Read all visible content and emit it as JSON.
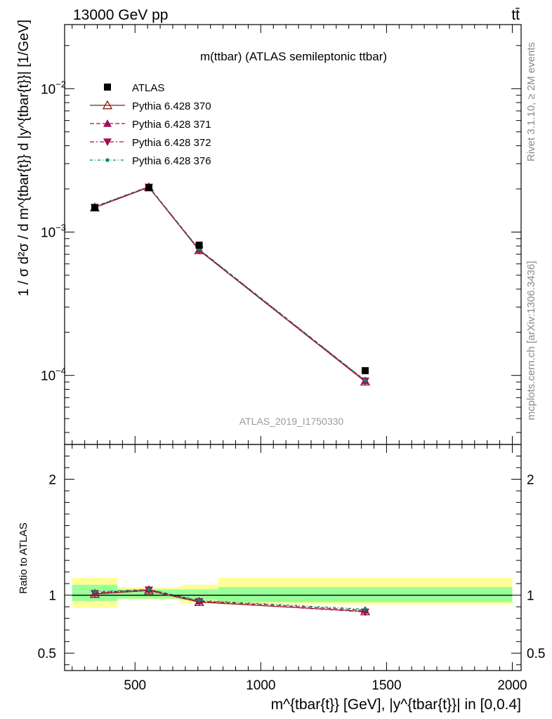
{
  "header": {
    "left": "13000 GeV pp",
    "right": "tt̄"
  },
  "side_text": {
    "rivet": "Rivet 3.1.10, ≥ 2M events",
    "mcplots": "mcplots.cern.ch [arXiv:1306.3436]"
  },
  "chart_data": {
    "type": "line",
    "title": "m(ttbar) (ATLAS semileptonic ttbar)",
    "analysis_tag": "ATLAS_2019_I1750330",
    "ylabel_main": "1 / σ d²σ / d m^{tbar{t}} d |y^{tbar{t}}| [1/GeV]",
    "ylabel_ratio": "Ratio to ATLAS",
    "xlabel": "m^{tbar{t}} [GeV], |y^{tbar{t}}| in [0,0.4]",
    "x_range": [
      220,
      2035
    ],
    "y_range_main": [
      3.3e-05,
      0.028
    ],
    "y_scale_main": "log",
    "y_range_ratio": [
      0.35,
      2.3
    ],
    "x_ticks": [
      "500",
      "1000",
      "1500",
      "2000"
    ],
    "y_ticks_main": [
      "10^{-4}",
      "10^{-3}",
      "10^{-2}"
    ],
    "y_ticks_ratio": [
      "0.5",
      "1",
      "2"
    ],
    "legend_position": "top-left",
    "data": {
      "name": "ATLAS",
      "x": [
        340,
        555,
        755,
        1415
      ],
      "y": [
        0.00148,
        0.00204,
        0.00081,
        0.000108
      ],
      "bins": [
        [
          250,
          430
        ],
        [
          430,
          680
        ],
        [
          680,
          830
        ],
        [
          830,
          2000
        ]
      ],
      "ratio_band_inner": [
        [
          0.95,
          1.09
        ],
        [
          0.97,
          1.05
        ],
        [
          0.96,
          1.05
        ],
        [
          0.94,
          1.07
        ]
      ],
      "ratio_band_outer": [
        [
          0.89,
          1.15
        ],
        [
          0.96,
          1.07
        ],
        [
          0.93,
          1.09
        ],
        [
          0.92,
          1.15
        ]
      ]
    },
    "series": [
      {
        "name": "Pythia 6.428 370",
        "color": "#8b1a1a",
        "marker": "triangle-open",
        "dash": "",
        "y": [
          0.00148,
          0.00205,
          0.000745,
          9.05e-05
        ],
        "ratio": [
          1.01,
          1.04,
          0.94,
          0.86
        ]
      },
      {
        "name": "Pythia 6.428 371",
        "color": "#a01050",
        "marker": "triangle-up",
        "dash": "6,3",
        "y": [
          0.0015,
          0.00207,
          0.000755,
          9.2e-05
        ],
        "ratio": [
          1.02,
          1.05,
          0.95,
          0.87
        ]
      },
      {
        "name": "Pythia 6.428 372",
        "color": "#a01050",
        "marker": "triangle-down",
        "dash": "6,3,2,3",
        "y": [
          0.00149,
          0.00206,
          0.00075,
          9.15e-05
        ],
        "ratio": [
          1.015,
          1.045,
          0.945,
          0.855
        ]
      },
      {
        "name": "Pythia 6.428 376",
        "color": "#00896b",
        "marker": "dot",
        "dash": "4,3,1,3",
        "y": [
          0.00151,
          0.00208,
          0.00076,
          9.25e-05
        ],
        "ratio": [
          1.03,
          1.05,
          0.955,
          0.88
        ]
      }
    ]
  }
}
